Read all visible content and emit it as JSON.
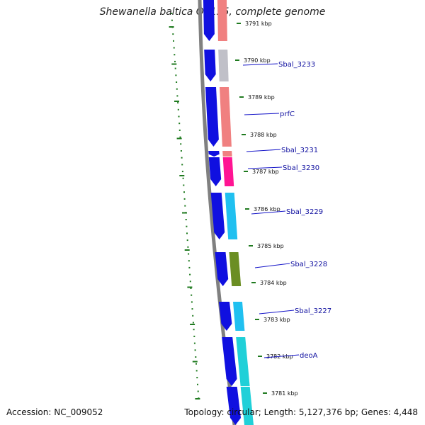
{
  "title": "Shewanella baltica OS155, complete genome",
  "footer": {
    "accession": "Accession: NC_009052",
    "topology": "Topology: circular; Length: 5,127,376 bp; Genes: 4,448"
  },
  "colors": {
    "backbone": "#808080",
    "tick": "#1f7a1f",
    "forward_strand": "#1010e0",
    "label_line": "#1414c8",
    "label_text": "#1010a0"
  },
  "ticks": [
    {
      "label": "3791 kbp"
    },
    {
      "label": "3790 kbp"
    },
    {
      "label": "3789 kbp"
    },
    {
      "label": "3788 kbp"
    },
    {
      "label": "3787 kbp"
    },
    {
      "label": "3786 kbp"
    },
    {
      "label": "3785 kbp"
    },
    {
      "label": "3784 kbp"
    },
    {
      "label": "3783 kbp"
    },
    {
      "label": "3782 kbp"
    },
    {
      "label": "3781 kbp"
    }
  ],
  "genes": [
    {
      "label": "",
      "color": "#f08080"
    },
    {
      "label": "Sbal_3233",
      "color": "#c0c0c8"
    },
    {
      "label": "prfC",
      "color": "#f08080"
    },
    {
      "label": "Sbal_3231",
      "color": "#f08080"
    },
    {
      "label": "Sbal_3230",
      "color": "#ff1493"
    },
    {
      "label": "Sbal_3229",
      "color": "#20c0f0"
    },
    {
      "label": "Sbal_3228",
      "color": "#6b8e23"
    },
    {
      "label": "Sbal_3227",
      "color": "#20c0f0"
    },
    {
      "label": "deoA",
      "color": "#20d0d8"
    },
    {
      "label": "",
      "color": "#20d0d8"
    }
  ]
}
